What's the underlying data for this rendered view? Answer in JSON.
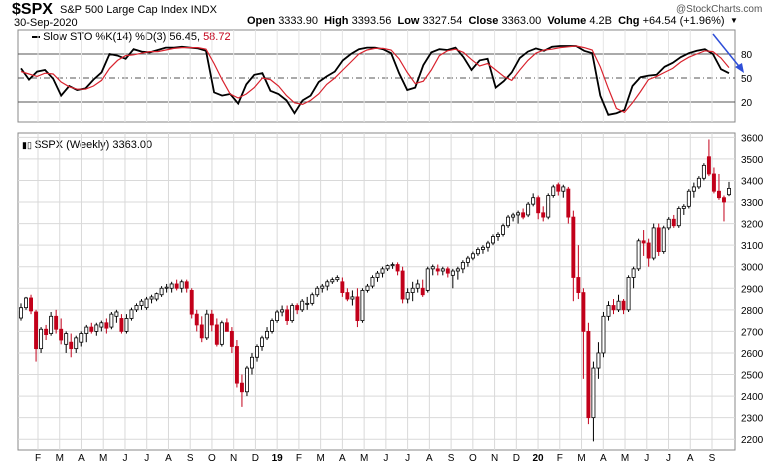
{
  "header": {
    "symbol": "$SPX",
    "subtitle": "S&P 500 Large Cap Index  INDX",
    "date": "30-Sep-2020",
    "open_label": "Open",
    "open": "3333.90",
    "high_label": "High",
    "high": "3393.56",
    "low_label": "Low",
    "low": "3327.54",
    "close_label": "Close",
    "close": "3363.00",
    "volume_label": "Volume",
    "volume": "4.2B",
    "chg_label": "Chg",
    "chg": "+64.54 (+1.96%)",
    "logo": "@StockCharts.com"
  },
  "indicator": {
    "legend_prefix": "Slow STO %K(14) %D(3)",
    "k_value": "56.45",
    "d_value": "58.72"
  },
  "price_panel": {
    "legend": "$SPX (Weekly) 3363.00"
  },
  "colors": {
    "up": "#000000",
    "down": "#c2001a",
    "k_line": "#000000",
    "d_line": "#d9232e",
    "arrow": "#2f4fd8",
    "grid": "#d9d9d9"
  },
  "chart_data": [
    {
      "type": "line",
      "title": "Slow STO %K(14) %D(3)",
      "ylim": [
        0,
        100
      ],
      "yticks": [
        20,
        50,
        80
      ],
      "reference_lines": [
        20,
        50,
        80
      ],
      "series": [
        {
          "name": "%K(14)",
          "values": [
            62,
            48,
            58,
            60,
            49,
            28,
            40,
            35,
            37,
            48,
            57,
            80,
            78,
            74,
            86,
            83,
            82,
            85,
            88,
            88,
            89,
            88,
            87,
            84,
            32,
            28,
            30,
            18,
            42,
            54,
            56,
            34,
            30,
            22,
            6,
            22,
            28,
            45,
            52,
            58,
            72,
            80,
            86,
            88,
            88,
            86,
            81,
            56,
            35,
            38,
            66,
            82,
            86,
            85,
            88,
            76,
            60,
            72,
            74,
            38,
            46,
            57,
            75,
            83,
            87,
            84,
            89,
            90,
            90,
            90,
            84,
            81,
            28,
            4,
            6,
            10,
            40,
            51,
            53,
            54,
            64,
            69,
            76,
            81,
            84,
            86,
            80,
            61,
            56
          ]
        },
        {
          "name": "%D(3)",
          "values": [
            58,
            55,
            52,
            56,
            55,
            45,
            39,
            36,
            36,
            40,
            47,
            62,
            72,
            78,
            79,
            81,
            83,
            83,
            85,
            87,
            88,
            88,
            88,
            86,
            68,
            48,
            30,
            25,
            30,
            38,
            50,
            48,
            40,
            28,
            19,
            17,
            22,
            30,
            42,
            50,
            60,
            70,
            80,
            85,
            87,
            87,
            85,
            74,
            57,
            43,
            46,
            60,
            78,
            84,
            86,
            82,
            73,
            65,
            68,
            60,
            52,
            47,
            60,
            72,
            81,
            85,
            86,
            88,
            89,
            90,
            88,
            85,
            64,
            37,
            12,
            7,
            19,
            33,
            48,
            52,
            57,
            62,
            70,
            76,
            80,
            84,
            83,
            75,
            63
          ]
        }
      ]
    },
    {
      "type": "candlestick",
      "title": "$SPX (Weekly)",
      "xlabel": "",
      "ylabel": "",
      "ylim": [
        2150,
        3620
      ],
      "yticks": [
        2200,
        2300,
        2400,
        2500,
        2600,
        2700,
        2800,
        2900,
        3000,
        3100,
        3200,
        3300,
        3400,
        3500,
        3600
      ],
      "xticks": [
        "F",
        "M",
        "A",
        "M",
        "J",
        "J",
        "A",
        "S",
        "O",
        "N",
        "D",
        "19",
        "F",
        "M",
        "A",
        "M",
        "J",
        "J",
        "A",
        "S",
        "O",
        "N",
        "D",
        "20",
        "F",
        "M",
        "A",
        "M",
        "J",
        "J",
        "A",
        "S"
      ],
      "candles": [
        {
          "o": 2762,
          "h": 2830,
          "l": 2750,
          "c": 2810
        },
        {
          "o": 2810,
          "h": 2860,
          "l": 2800,
          "c": 2855
        },
        {
          "o": 2855,
          "h": 2870,
          "l": 2780,
          "c": 2795
        },
        {
          "o": 2790,
          "h": 2800,
          "l": 2560,
          "c": 2620
        },
        {
          "o": 2620,
          "h": 2720,
          "l": 2600,
          "c": 2710
        },
        {
          "o": 2710,
          "h": 2730,
          "l": 2660,
          "c": 2685
        },
        {
          "o": 2690,
          "h": 2790,
          "l": 2680,
          "c": 2770
        },
        {
          "o": 2770,
          "h": 2800,
          "l": 2690,
          "c": 2710
        },
        {
          "o": 2710,
          "h": 2760,
          "l": 2640,
          "c": 2660
        },
        {
          "o": 2640,
          "h": 2700,
          "l": 2600,
          "c": 2690
        },
        {
          "o": 2650,
          "h": 2690,
          "l": 2580,
          "c": 2620
        },
        {
          "o": 2620,
          "h": 2680,
          "l": 2600,
          "c": 2670
        },
        {
          "o": 2650,
          "h": 2700,
          "l": 2630,
          "c": 2690
        },
        {
          "o": 2690,
          "h": 2730,
          "l": 2650,
          "c": 2720
        },
        {
          "o": 2720,
          "h": 2740,
          "l": 2690,
          "c": 2700
        },
        {
          "o": 2700,
          "h": 2740,
          "l": 2680,
          "c": 2730
        },
        {
          "o": 2720,
          "h": 2750,
          "l": 2700,
          "c": 2740
        },
        {
          "o": 2740,
          "h": 2760,
          "l": 2690,
          "c": 2715
        },
        {
          "o": 2720,
          "h": 2790,
          "l": 2710,
          "c": 2780
        },
        {
          "o": 2770,
          "h": 2800,
          "l": 2740,
          "c": 2790
        },
        {
          "o": 2760,
          "h": 2780,
          "l": 2690,
          "c": 2700
        },
        {
          "o": 2700,
          "h": 2780,
          "l": 2690,
          "c": 2760
        },
        {
          "o": 2760,
          "h": 2810,
          "l": 2750,
          "c": 2800
        },
        {
          "o": 2800,
          "h": 2830,
          "l": 2790,
          "c": 2820
        },
        {
          "o": 2820,
          "h": 2850,
          "l": 2800,
          "c": 2840
        },
        {
          "o": 2810,
          "h": 2860,
          "l": 2800,
          "c": 2850
        },
        {
          "o": 2850,
          "h": 2870,
          "l": 2830,
          "c": 2860
        },
        {
          "o": 2850,
          "h": 2880,
          "l": 2840,
          "c": 2875
        },
        {
          "o": 2870,
          "h": 2910,
          "l": 2860,
          "c": 2900
        },
        {
          "o": 2900,
          "h": 2920,
          "l": 2880,
          "c": 2905
        },
        {
          "o": 2900,
          "h": 2930,
          "l": 2880,
          "c": 2920
        },
        {
          "o": 2920,
          "h": 2940,
          "l": 2890,
          "c": 2900
        },
        {
          "o": 2900,
          "h": 2940,
          "l": 2880,
          "c": 2930
        },
        {
          "o": 2930,
          "h": 2940,
          "l": 2880,
          "c": 2900
        },
        {
          "o": 2890,
          "h": 2900,
          "l": 2760,
          "c": 2780
        },
        {
          "o": 2780,
          "h": 2800,
          "l": 2700,
          "c": 2730
        },
        {
          "o": 2730,
          "h": 2770,
          "l": 2650,
          "c": 2670
        },
        {
          "o": 2670,
          "h": 2800,
          "l": 2660,
          "c": 2780
        },
        {
          "o": 2780,
          "h": 2800,
          "l": 2700,
          "c": 2730
        },
        {
          "o": 2730,
          "h": 2760,
          "l": 2630,
          "c": 2640
        },
        {
          "o": 2640,
          "h": 2750,
          "l": 2630,
          "c": 2740
        },
        {
          "o": 2740,
          "h": 2760,
          "l": 2700,
          "c": 2700
        },
        {
          "o": 2700,
          "h": 2720,
          "l": 2600,
          "c": 2630
        },
        {
          "o": 2630,
          "h": 2660,
          "l": 2440,
          "c": 2460
        },
        {
          "o": 2460,
          "h": 2500,
          "l": 2350,
          "c": 2420
        },
        {
          "o": 2420,
          "h": 2540,
          "l": 2400,
          "c": 2530
        },
        {
          "o": 2530,
          "h": 2600,
          "l": 2500,
          "c": 2580
        },
        {
          "o": 2580,
          "h": 2640,
          "l": 2560,
          "c": 2630
        },
        {
          "o": 2630,
          "h": 2680,
          "l": 2610,
          "c": 2670
        },
        {
          "o": 2670,
          "h": 2720,
          "l": 2660,
          "c": 2700
        },
        {
          "o": 2700,
          "h": 2760,
          "l": 2690,
          "c": 2750
        },
        {
          "o": 2750,
          "h": 2800,
          "l": 2740,
          "c": 2790
        },
        {
          "o": 2790,
          "h": 2820,
          "l": 2770,
          "c": 2800
        },
        {
          "o": 2800,
          "h": 2820,
          "l": 2730,
          "c": 2750
        },
        {
          "o": 2750,
          "h": 2830,
          "l": 2740,
          "c": 2820
        },
        {
          "o": 2820,
          "h": 2830,
          "l": 2780,
          "c": 2800
        },
        {
          "o": 2800,
          "h": 2850,
          "l": 2790,
          "c": 2840
        },
        {
          "o": 2830,
          "h": 2860,
          "l": 2800,
          "c": 2830
        },
        {
          "o": 2830,
          "h": 2880,
          "l": 2820,
          "c": 2870
        },
        {
          "o": 2870,
          "h": 2910,
          "l": 2860,
          "c": 2900
        },
        {
          "o": 2900,
          "h": 2920,
          "l": 2880,
          "c": 2910
        },
        {
          "o": 2910,
          "h": 2940,
          "l": 2890,
          "c": 2930
        },
        {
          "o": 2930,
          "h": 2950,
          "l": 2920,
          "c": 2940
        },
        {
          "o": 2940,
          "h": 2960,
          "l": 2930,
          "c": 2950
        },
        {
          "o": 2930,
          "h": 2950,
          "l": 2860,
          "c": 2880
        },
        {
          "o": 2880,
          "h": 2900,
          "l": 2840,
          "c": 2850
        },
        {
          "o": 2850,
          "h": 2890,
          "l": 2820,
          "c": 2860
        },
        {
          "o": 2860,
          "h": 2900,
          "l": 2720,
          "c": 2750
        },
        {
          "o": 2750,
          "h": 2900,
          "l": 2740,
          "c": 2890
        },
        {
          "o": 2890,
          "h": 2920,
          "l": 2880,
          "c": 2910
        },
        {
          "o": 2910,
          "h": 2960,
          "l": 2900,
          "c": 2950
        },
        {
          "o": 2950,
          "h": 2980,
          "l": 2930,
          "c": 2970
        },
        {
          "o": 2970,
          "h": 3000,
          "l": 2950,
          "c": 2990
        },
        {
          "o": 2990,
          "h": 3010,
          "l": 2980,
          "c": 3005
        },
        {
          "o": 3005,
          "h": 3020,
          "l": 2990,
          "c": 3010
        },
        {
          "o": 3010,
          "h": 3020,
          "l": 2960,
          "c": 2980
        },
        {
          "o": 2980,
          "h": 3000,
          "l": 2830,
          "c": 2850
        },
        {
          "o": 2850,
          "h": 2900,
          "l": 2830,
          "c": 2880
        },
        {
          "o": 2880,
          "h": 2930,
          "l": 2840,
          "c": 2900
        },
        {
          "o": 2900,
          "h": 2940,
          "l": 2880,
          "c": 2920
        },
        {
          "o": 2900,
          "h": 2940,
          "l": 2860,
          "c": 2870
        },
        {
          "o": 2890,
          "h": 3000,
          "l": 2880,
          "c": 2990
        },
        {
          "o": 2990,
          "h": 3010,
          "l": 2960,
          "c": 3000
        },
        {
          "o": 2990,
          "h": 3010,
          "l": 2960,
          "c": 2980
        },
        {
          "o": 2980,
          "h": 3000,
          "l": 2960,
          "c": 2990
        },
        {
          "o": 2990,
          "h": 3000,
          "l": 2950,
          "c": 2970
        },
        {
          "o": 2960,
          "h": 2990,
          "l": 2900,
          "c": 2980
        },
        {
          "o": 2980,
          "h": 3000,
          "l": 2940,
          "c": 2990
        },
        {
          "o": 2990,
          "h": 3030,
          "l": 2970,
          "c": 3020
        },
        {
          "o": 3020,
          "h": 3050,
          "l": 3000,
          "c": 3040
        },
        {
          "o": 3040,
          "h": 3070,
          "l": 3030,
          "c": 3060
        },
        {
          "o": 3060,
          "h": 3090,
          "l": 3050,
          "c": 3080
        },
        {
          "o": 3080,
          "h": 3100,
          "l": 3060,
          "c": 3090
        },
        {
          "o": 3090,
          "h": 3120,
          "l": 3070,
          "c": 3110
        },
        {
          "o": 3110,
          "h": 3150,
          "l": 3100,
          "c": 3140
        },
        {
          "o": 3140,
          "h": 3160,
          "l": 3120,
          "c": 3150
        },
        {
          "o": 3150,
          "h": 3200,
          "l": 3140,
          "c": 3190
        },
        {
          "o": 3190,
          "h": 3240,
          "l": 3180,
          "c": 3230
        },
        {
          "o": 3230,
          "h": 3250,
          "l": 3210,
          "c": 3240
        },
        {
          "o": 3240,
          "h": 3260,
          "l": 3200,
          "c": 3250
        },
        {
          "o": 3250,
          "h": 3270,
          "l": 3220,
          "c": 3230
        },
        {
          "o": 3240,
          "h": 3300,
          "l": 3230,
          "c": 3290
        },
        {
          "o": 3290,
          "h": 3340,
          "l": 3280,
          "c": 3320
        },
        {
          "o": 3320,
          "h": 3330,
          "l": 3220,
          "c": 3250
        },
        {
          "o": 3250,
          "h": 3280,
          "l": 3210,
          "c": 3230
        },
        {
          "o": 3230,
          "h": 3340,
          "l": 3220,
          "c": 3330
        },
        {
          "o": 3330,
          "h": 3380,
          "l": 3320,
          "c": 3370
        },
        {
          "o": 3380,
          "h": 3390,
          "l": 3330,
          "c": 3350
        },
        {
          "o": 3350,
          "h": 3380,
          "l": 3320,
          "c": 3370
        },
        {
          "o": 3360,
          "h": 3370,
          "l": 3200,
          "c": 3230
        },
        {
          "o": 3230,
          "h": 3260,
          "l": 2840,
          "c": 2950
        },
        {
          "o": 2950,
          "h": 3100,
          "l": 2850,
          "c": 2880
        },
        {
          "o": 2880,
          "h": 2900,
          "l": 2480,
          "c": 2700
        },
        {
          "o": 2700,
          "h": 2740,
          "l": 2270,
          "c": 2300
        },
        {
          "o": 2300,
          "h": 2560,
          "l": 2190,
          "c": 2530
        },
        {
          "o": 2530,
          "h": 2650,
          "l": 2480,
          "c": 2600
        },
        {
          "o": 2600,
          "h": 2790,
          "l": 2580,
          "c": 2770
        },
        {
          "o": 2770,
          "h": 2840,
          "l": 2750,
          "c": 2820
        },
        {
          "o": 2820,
          "h": 2850,
          "l": 2780,
          "c": 2800
        },
        {
          "o": 2800,
          "h": 2870,
          "l": 2790,
          "c": 2840
        },
        {
          "o": 2840,
          "h": 2850,
          "l": 2780,
          "c": 2800
        },
        {
          "o": 2800,
          "h": 2960,
          "l": 2790,
          "c": 2950
        },
        {
          "o": 2950,
          "h": 3000,
          "l": 2900,
          "c": 2990
        },
        {
          "o": 2990,
          "h": 3130,
          "l": 2980,
          "c": 3120
        },
        {
          "o": 3120,
          "h": 3170,
          "l": 3050,
          "c": 3110
        },
        {
          "o": 3110,
          "h": 3130,
          "l": 3000,
          "c": 3040
        },
        {
          "o": 3040,
          "h": 3200,
          "l": 3030,
          "c": 3180
        },
        {
          "o": 3180,
          "h": 3200,
          "l": 3050,
          "c": 3070
        },
        {
          "o": 3070,
          "h": 3190,
          "l": 3060,
          "c": 3180
        },
        {
          "o": 3180,
          "h": 3230,
          "l": 3170,
          "c": 3220
        },
        {
          "o": 3220,
          "h": 3240,
          "l": 3180,
          "c": 3190
        },
        {
          "o": 3190,
          "h": 3280,
          "l": 3180,
          "c": 3270
        },
        {
          "o": 3270,
          "h": 3290,
          "l": 3240,
          "c": 3280
        },
        {
          "o": 3280,
          "h": 3360,
          "l": 3270,
          "c": 3350
        },
        {
          "o": 3350,
          "h": 3390,
          "l": 3320,
          "c": 3370
        },
        {
          "o": 3370,
          "h": 3420,
          "l": 3360,
          "c": 3410
        },
        {
          "o": 3410,
          "h": 3480,
          "l": 3400,
          "c": 3470
        },
        {
          "o": 3510,
          "h": 3590,
          "l": 3420,
          "c": 3430
        },
        {
          "o": 3430,
          "h": 3460,
          "l": 3340,
          "c": 3350
        },
        {
          "o": 3350,
          "h": 3430,
          "l": 3310,
          "c": 3320
        },
        {
          "o": 3320,
          "h": 3330,
          "l": 3210,
          "c": 3300
        },
        {
          "o": 3333.9,
          "h": 3393.56,
          "l": 3327.54,
          "c": 3363.0
        }
      ]
    }
  ]
}
